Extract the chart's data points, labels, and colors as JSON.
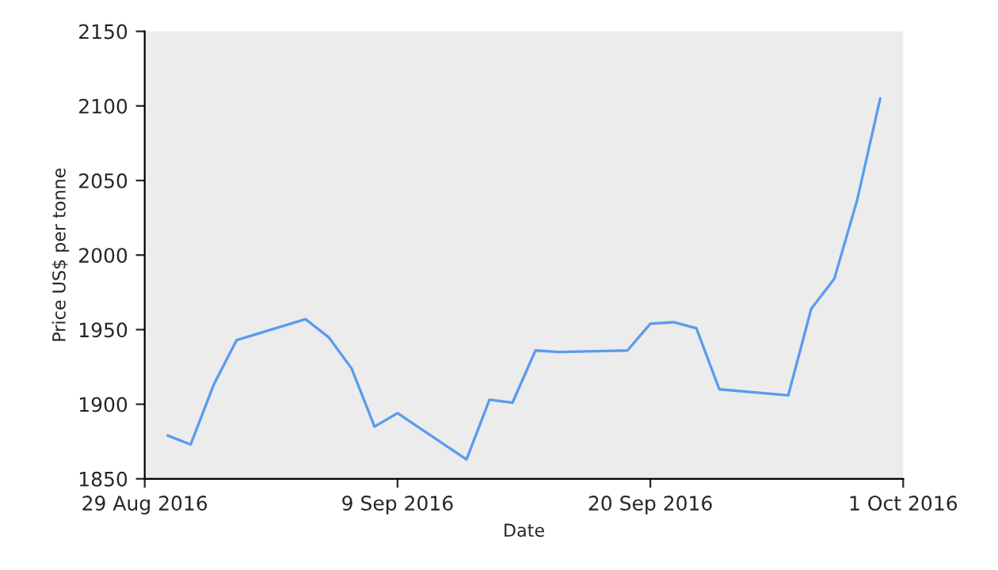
{
  "chart_data": {
    "type": "line",
    "xlabel": "Date",
    "ylabel": "Price US$ per tonne",
    "x": [
      "2016-08-30",
      "2016-08-31",
      "2016-09-01",
      "2016-09-02",
      "2016-09-05",
      "2016-09-06",
      "2016-09-07",
      "2016-09-08",
      "2016-09-09",
      "2016-09-12",
      "2016-09-13",
      "2016-09-14",
      "2016-09-15",
      "2016-09-16",
      "2016-09-19",
      "2016-09-20",
      "2016-09-21",
      "2016-09-22",
      "2016-09-23",
      "2016-09-26",
      "2016-09-27",
      "2016-09-28",
      "2016-09-29",
      "2016-09-30"
    ],
    "series": [
      {
        "color": "#5b9bef",
        "values": [
          1879,
          1873,
          1913,
          1943,
          1957,
          1945,
          1924,
          1885,
          1894,
          1863,
          1903,
          1901,
          1936,
          1935,
          1936,
          1954,
          1955,
          1951,
          1910,
          1906,
          1964,
          1984,
          2037,
          2105
        ]
      }
    ],
    "xlim": [
      "2016-08-29",
      "2016-10-01"
    ],
    "xticks": [
      {
        "value": "2016-08-29",
        "label": "29 Aug 2016"
      },
      {
        "value": "2016-09-09",
        "label": "9 Sep 2016"
      },
      {
        "value": "2016-09-20",
        "label": "20 Sep 2016"
      },
      {
        "value": "2016-10-01",
        "label": "1 Oct 2016"
      }
    ],
    "ylim": [
      1850,
      2150
    ],
    "yticks": [
      1850,
      1900,
      1950,
      2000,
      2050,
      2100,
      2150
    ],
    "grid": false,
    "marker": "none",
    "line_style": "solid"
  }
}
